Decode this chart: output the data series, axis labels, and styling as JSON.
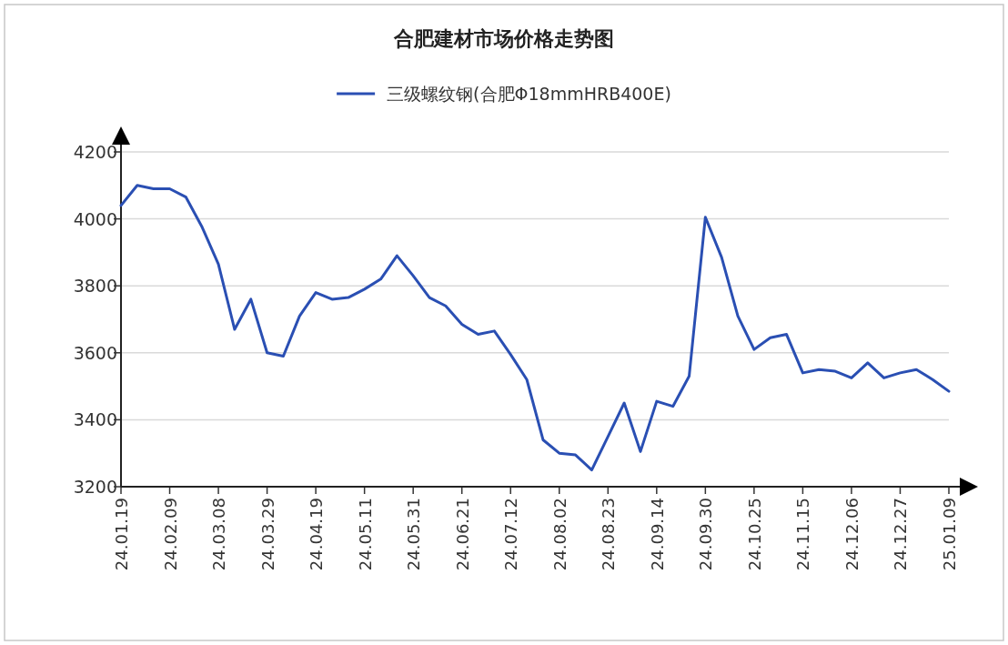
{
  "chart_data": {
    "type": "line",
    "title": "合肥建材市场价格走势图",
    "categories": [
      "24.01.19",
      null,
      null,
      "24.02.09",
      null,
      null,
      "24.03.08",
      null,
      null,
      "24.03.29",
      null,
      null,
      "24.04.19",
      null,
      null,
      "24.05.11",
      null,
      null,
      "24.05.31",
      null,
      null,
      "24.06.21",
      null,
      null,
      "24.07.12",
      null,
      null,
      "24.08.02",
      null,
      null,
      "24.08.23",
      null,
      null,
      "24.09.14",
      null,
      null,
      "24.09.30",
      null,
      null,
      "24.10.25",
      null,
      null,
      "24.11.15",
      null,
      null,
      "24.12.06",
      null,
      null,
      "24.12.27",
      null,
      null,
      "25.01.09"
    ],
    "series": [
      {
        "name": "三级螺纹钢(合肥Φ18mmHRB400E)",
        "color": "#2a4fb3",
        "values": [
          4040,
          4100,
          4090,
          4090,
          4065,
          3975,
          3865,
          3670,
          3760,
          3600,
          3590,
          3710,
          3780,
          3760,
          3765,
          3790,
          3820,
          3890,
          3830,
          3765,
          3740,
          3685,
          3655,
          3665,
          3595,
          3520,
          3340,
          3300,
          3295,
          3250,
          3350,
          3450,
          3305,
          3455,
          3440,
          3530,
          4005,
          3885,
          3710,
          3610,
          3645,
          3655,
          3540,
          3550,
          3545,
          3525,
          3570,
          3525,
          3540,
          3550,
          3520,
          3485
        ]
      }
    ],
    "ylim": [
      3200,
      4200
    ],
    "yticks": [
      3200,
      3400,
      3600,
      3800,
      4000,
      4200
    ],
    "grid": "y",
    "legend": "top",
    "marker": "none",
    "line_style": "solid"
  }
}
